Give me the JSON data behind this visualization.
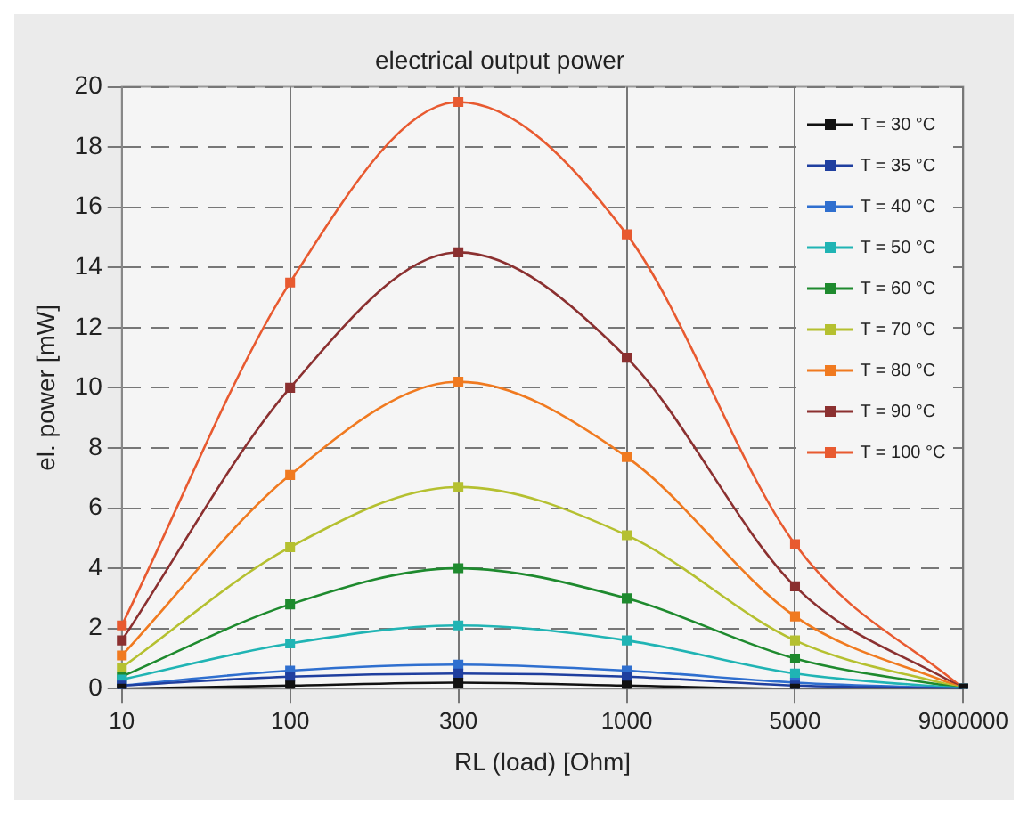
{
  "chart_data": {
    "type": "line",
    "title": "electrical output power",
    "xlabel": "RL (load) [Ohm]",
    "ylabel": "el. power [mW]",
    "categories": [
      "10",
      "100",
      "300",
      "1000",
      "5000",
      "9000000"
    ],
    "ylim": [
      0,
      20
    ],
    "yticks": [
      0,
      2,
      4,
      6,
      8,
      10,
      12,
      14,
      16,
      18,
      20
    ],
    "grid": true,
    "legend": "top right",
    "marker": "square",
    "line_style": "solid",
    "series": [
      {
        "name": "T = 30 °C",
        "color": "#111111",
        "values": [
          0,
          0.1,
          0.2,
          0.1,
          0,
          0
        ]
      },
      {
        "name": "T = 35 °C",
        "color": "#1f3f9f",
        "values": [
          0.1,
          0.4,
          0.5,
          0.4,
          0.1,
          0
        ]
      },
      {
        "name": "T = 40 °C",
        "color": "#2f6fcf",
        "values": [
          0.1,
          0.6,
          0.8,
          0.6,
          0.2,
          0
        ]
      },
      {
        "name": "T = 50 °C",
        "color": "#20b4b4",
        "values": [
          0.3,
          1.5,
          2.1,
          1.6,
          0.5,
          0
        ]
      },
      {
        "name": "T = 60 °C",
        "color": "#1e8a2e",
        "values": [
          0.4,
          2.8,
          4.0,
          3.0,
          1.0,
          0
        ]
      },
      {
        "name": "T = 70 °C",
        "color": "#b5c030",
        "values": [
          0.7,
          4.7,
          6.7,
          5.1,
          1.6,
          0
        ]
      },
      {
        "name": "T = 80 °C",
        "color": "#f07a20",
        "values": [
          1.1,
          7.1,
          10.2,
          7.7,
          2.4,
          0
        ]
      },
      {
        "name": "T = 90 °C",
        "color": "#8b3030",
        "values": [
          1.6,
          10.0,
          14.5,
          11.0,
          3.4,
          0
        ]
      },
      {
        "name": "T = 100 °C",
        "color": "#e85a30",
        "values": [
          2.1,
          13.5,
          19.5,
          15.1,
          4.8,
          0
        ]
      }
    ]
  }
}
